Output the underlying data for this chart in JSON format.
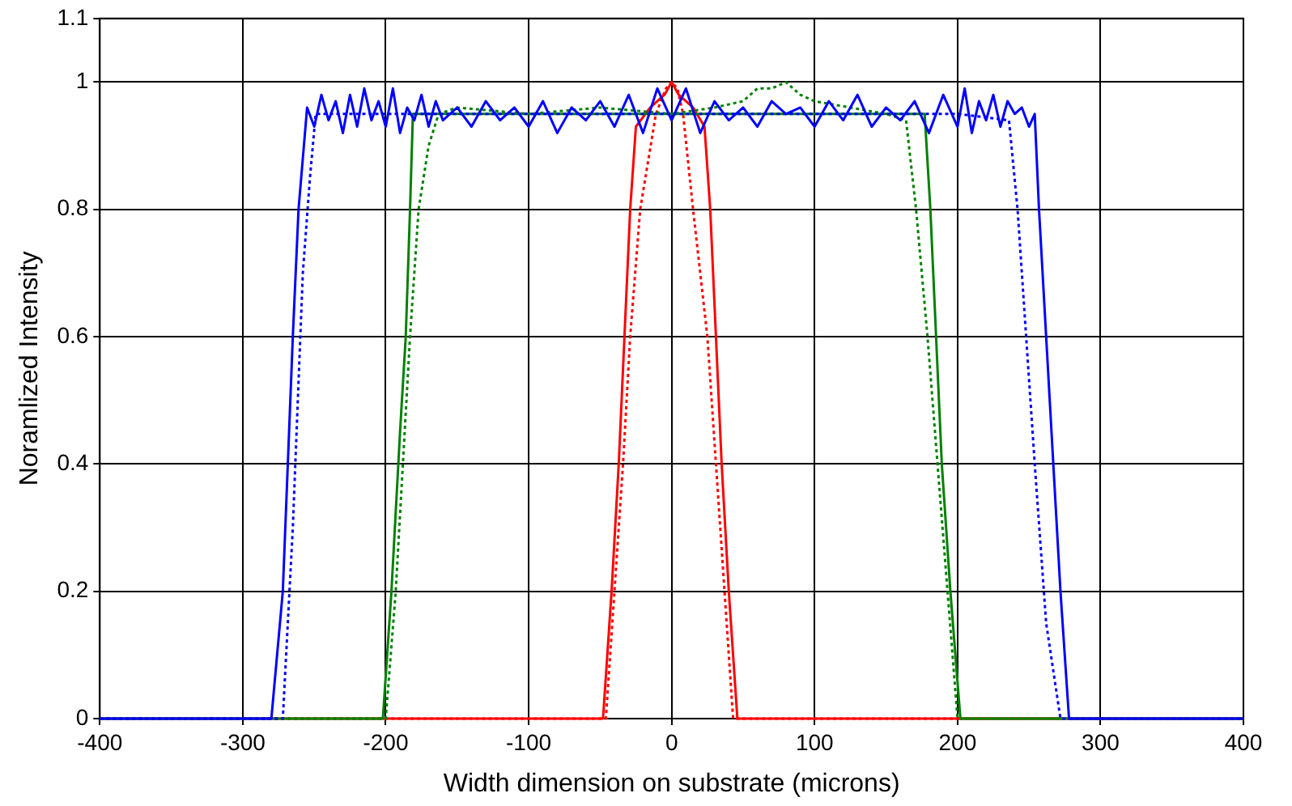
{
  "chart_data": {
    "type": "line",
    "xlabel": "Width dimension on substrate (microns)",
    "ylabel": "Noramlized Intensity",
    "xlim": [
      -400,
      400
    ],
    "xticks": [
      -400,
      -300,
      -200,
      -100,
      0,
      100,
      200,
      300,
      400
    ],
    "ylim": [
      0,
      1.1
    ],
    "yticks": [
      0,
      0.2,
      0.4,
      0.6,
      0.8,
      1,
      1.1
    ],
    "grid": true,
    "legend": false,
    "marker": "none",
    "series": [
      {
        "color": "#0000ff",
        "line_style": "solid",
        "x": [
          -400,
          -280,
          -272,
          -265,
          -261,
          -255,
          -250,
          -245,
          -240,
          -235,
          -230,
          -225,
          -220,
          -215,
          -210,
          -205,
          -200,
          -195,
          -190,
          -185,
          -180,
          -175,
          -170,
          -165,
          -160,
          -150,
          -140,
          -130,
          -120,
          -110,
          -100,
          -90,
          -80,
          -70,
          -60,
          -50,
          -40,
          -30,
          -20,
          -10,
          0,
          10,
          20,
          30,
          40,
          50,
          60,
          70,
          80,
          90,
          100,
          110,
          120,
          130,
          140,
          150,
          160,
          170,
          180,
          190,
          200,
          205,
          210,
          215,
          220,
          225,
          230,
          235,
          240,
          245,
          250,
          254,
          257,
          262,
          267,
          272,
          278,
          400
        ],
        "values": [
          0,
          0,
          0.2,
          0.6,
          0.8,
          0.96,
          0.93,
          0.98,
          0.94,
          0.97,
          0.92,
          0.98,
          0.93,
          0.99,
          0.94,
          0.97,
          0.93,
          0.99,
          0.92,
          0.96,
          0.94,
          0.98,
          0.93,
          0.97,
          0.94,
          0.96,
          0.93,
          0.97,
          0.94,
          0.96,
          0.93,
          0.97,
          0.92,
          0.96,
          0.94,
          0.97,
          0.93,
          0.98,
          0.92,
          0.99,
          0.94,
          0.99,
          0.92,
          0.97,
          0.94,
          0.96,
          0.93,
          0.97,
          0.95,
          0.96,
          0.93,
          0.97,
          0.94,
          0.98,
          0.93,
          0.96,
          0.94,
          0.97,
          0.92,
          0.98,
          0.93,
          0.99,
          0.92,
          0.97,
          0.94,
          0.98,
          0.93,
          0.97,
          0.95,
          0.96,
          0.93,
          0.95,
          0.8,
          0.6,
          0.4,
          0.2,
          0,
          0
        ]
      },
      {
        "color": "#0000ff",
        "line_style": "dotted",
        "x": [
          -400,
          -272,
          -265,
          -258,
          -253,
          -249,
          -240,
          -200,
          -100,
          0,
          100,
          200,
          236,
          242,
          248,
          254,
          262,
          272,
          400
        ],
        "values": [
          0,
          0,
          0.3,
          0.7,
          0.85,
          0.95,
          0.95,
          0.95,
          0.95,
          0.95,
          0.95,
          0.95,
          0.94,
          0.8,
          0.6,
          0.4,
          0.15,
          0,
          0
        ]
      },
      {
        "color": "#008000",
        "line_style": "solid",
        "x": [
          -400,
          -202,
          -196,
          -190,
          -186,
          -183,
          -181,
          -170,
          -100,
          0,
          100,
          170,
          177,
          181,
          185,
          189,
          195,
          202,
          400
        ],
        "values": [
          0,
          0,
          0.2,
          0.45,
          0.6,
          0.8,
          0.95,
          0.95,
          0.95,
          0.95,
          0.95,
          0.95,
          0.95,
          0.8,
          0.6,
          0.4,
          0.2,
          0,
          0
        ]
      },
      {
        "color": "#008000",
        "line_style": "dotted",
        "x": [
          -400,
          -200,
          -193,
          -188,
          -183,
          -177,
          -170,
          -163,
          -150,
          -100,
          -50,
          0,
          30,
          50,
          60,
          70,
          80,
          90,
          100,
          150,
          164,
          171,
          179,
          186,
          193,
          200,
          400
        ],
        "values": [
          0,
          0,
          0.2,
          0.4,
          0.6,
          0.8,
          0.9,
          0.95,
          0.96,
          0.95,
          0.96,
          0.95,
          0.96,
          0.97,
          0.99,
          0.99,
          1,
          0.98,
          0.97,
          0.95,
          0.94,
          0.8,
          0.6,
          0.4,
          0.2,
          0,
          0
        ]
      },
      {
        "color": "#ff0000",
        "line_style": "solid",
        "x": [
          -400,
          -48,
          -42,
          -37,
          -33,
          -29,
          -25,
          -15,
          -5,
          0,
          5,
          15,
          23,
          27,
          31,
          35,
          40,
          46,
          400
        ],
        "values": [
          0,
          0,
          0.2,
          0.4,
          0.6,
          0.8,
          0.93,
          0.96,
          0.98,
          1,
          0.98,
          0.96,
          0.93,
          0.8,
          0.6,
          0.4,
          0.2,
          0,
          0
        ]
      },
      {
        "color": "#ff0000",
        "line_style": "dotted",
        "x": [
          -400,
          -46,
          -40,
          -34,
          -29,
          -22,
          -11,
          -4,
          0,
          4,
          8,
          15,
          20,
          25,
          31,
          37,
          43,
          400
        ],
        "values": [
          0,
          0,
          0.2,
          0.4,
          0.6,
          0.8,
          0.95,
          0.99,
          1,
          0.99,
          0.95,
          0.8,
          0.7,
          0.6,
          0.4,
          0.2,
          0,
          0
        ]
      }
    ]
  }
}
